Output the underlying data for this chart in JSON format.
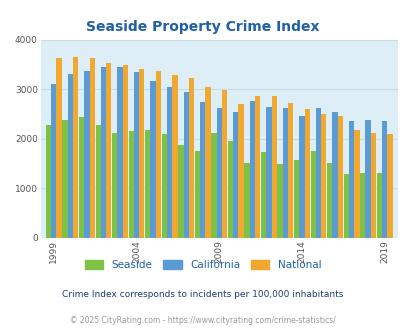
{
  "title": "Seaside Property Crime Index",
  "years": [
    1999,
    2000,
    2001,
    2002,
    2003,
    2004,
    2005,
    2006,
    2007,
    2008,
    2009,
    2010,
    2011,
    2012,
    2013,
    2014,
    2015,
    2016,
    2017,
    2018,
    2019
  ],
  "seaside": [
    2280,
    2380,
    2440,
    2280,
    2110,
    2150,
    2170,
    2090,
    1880,
    1750,
    2120,
    1960,
    1500,
    1720,
    1490,
    1570,
    1750,
    1510,
    1290,
    1300,
    1300
  ],
  "california": [
    3100,
    3310,
    3360,
    3440,
    3440,
    3340,
    3170,
    3050,
    2950,
    2730,
    2610,
    2540,
    2760,
    2640,
    2620,
    2460,
    2620,
    2540,
    2360,
    2370,
    2360
  ],
  "national": [
    3620,
    3640,
    3620,
    3520,
    3490,
    3400,
    3370,
    3290,
    3220,
    3050,
    2990,
    2690,
    2870,
    2870,
    2720,
    2590,
    2500,
    2450,
    2180,
    2110,
    2100
  ],
  "seaside_color": "#7dc244",
  "california_color": "#5b9bd5",
  "national_color": "#f0a830",
  "bg_color": "#ddeef6",
  "ylim": [
    0,
    4000
  ],
  "yticks": [
    0,
    1000,
    2000,
    3000,
    4000
  ],
  "xtick_labels": [
    "1999",
    "2004",
    "2009",
    "2014",
    "2019"
  ],
  "xtick_positions": [
    0,
    5,
    10,
    15,
    20
  ],
  "footnote1": "Crime Index corresponds to incidents per 100,000 inhabitants",
  "footnote2": "© 2025 CityRating.com - https://www.cityrating.com/crime-statistics/",
  "title_color": "#1f5fa6",
  "footnote1_color": "#1f3d6b",
  "footnote2_color": "#999999",
  "bar_width": 0.32
}
